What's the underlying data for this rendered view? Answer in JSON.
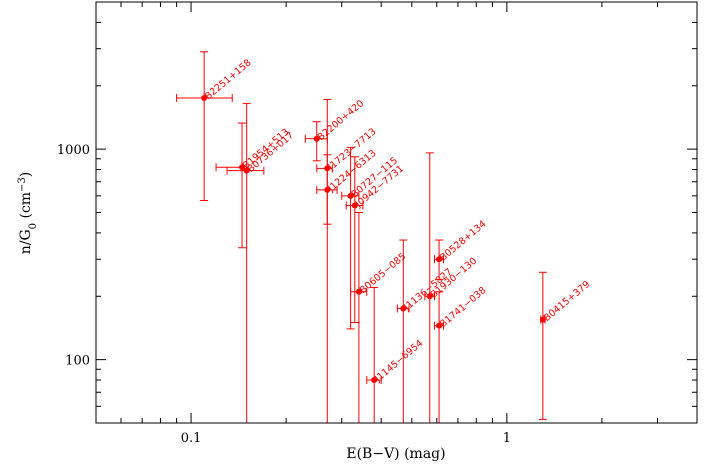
{
  "chart_data": {
    "type": "scatter",
    "title": "",
    "xlabel": "E(B−V) (mag)",
    "ylabel_main": "n/G",
    "ylabel_sub": "0",
    "ylabel_unit_open": " (cm",
    "ylabel_unit_sup": "−3",
    "ylabel_unit_close": ")",
    "xscale": "log",
    "yscale": "log",
    "xlim": [
      0.05,
      4.0
    ],
    "ylim": [
      50,
      5000
    ],
    "x_ticklabels": [
      "0.1",
      "1"
    ],
    "y_ticklabels": [
      "100",
      "1000"
    ],
    "color": "#ff0000",
    "points": [
      {
        "label": "B2251+158",
        "x": 0.11,
        "x_err": [
          0.09,
          0.135
        ],
        "y": 1750,
        "y_err": [
          570,
          2900
        ]
      },
      {
        "label": "B1954+513",
        "x": 0.145,
        "x_err": [
          0.12,
          0.145
        ],
        "y": 820,
        "y_err": [
          340,
          1330
        ]
      },
      {
        "label": "B0736+017",
        "x": 0.15,
        "x_err": [
          0.13,
          0.17
        ],
        "y": 790,
        "y_err": [
          50,
          1650
        ]
      },
      {
        "label": "B2200+420",
        "x": 0.25,
        "x_err": [
          0.23,
          0.27
        ],
        "y": 1120,
        "y_err": [
          880,
          1350
        ]
      },
      {
        "label": "J1723−7713",
        "x": 0.27,
        "x_err": [
          0.25,
          0.28
        ],
        "y": 810,
        "y_err": [
          50,
          1720
        ]
      },
      {
        "label": "J1224−6313",
        "x": 0.27,
        "x_err": [
          0.25,
          0.29
        ],
        "y": 640,
        "y_err": [
          440,
          940
        ]
      },
      {
        "label": "B0727−115",
        "x": 0.32,
        "x_err": [
          0.3,
          0.34
        ],
        "y": 600,
        "y_err": [
          140,
          1020
        ]
      },
      {
        "label": "J0942−7731",
        "x": 0.33,
        "x_err": [
          0.31,
          0.35
        ],
        "y": 540,
        "y_err": [
          150,
          920
        ]
      },
      {
        "label": "B0605−085",
        "x": 0.34,
        "x_err": [
          0.32,
          0.36
        ],
        "y": 210,
        "y_err": [
          50,
          500
        ]
      },
      {
        "label": "J1145−6954",
        "x": 0.38,
        "x_err": [
          0.36,
          0.4
        ],
        "y": 80,
        "y_err": [
          50,
          220
        ]
      },
      {
        "label": "J1136−5827",
        "x": 0.47,
        "x_err": [
          0.45,
          0.49
        ],
        "y": 175,
        "y_err": [
          50,
          370
        ]
      },
      {
        "label": "B1930−130",
        "x": 0.57,
        "x_err": [
          0.55,
          0.59
        ],
        "y": 200,
        "y_err": [
          50,
          960
        ]
      },
      {
        "label": "B0528+134",
        "x": 0.61,
        "x_err": [
          0.59,
          0.63
        ],
        "y": 300,
        "y_err": [
          240,
          370
        ]
      },
      {
        "label": "B1741−038",
        "x": 0.61,
        "x_err": [
          0.59,
          0.63
        ],
        "y": 145,
        "y_err": [
          50,
          210
        ]
      },
      {
        "label": "B0415+379",
        "x": 1.3,
        "x_err": [
          1.28,
          1.32
        ],
        "y": 155,
        "y_err": [
          52,
          260
        ]
      }
    ]
  }
}
